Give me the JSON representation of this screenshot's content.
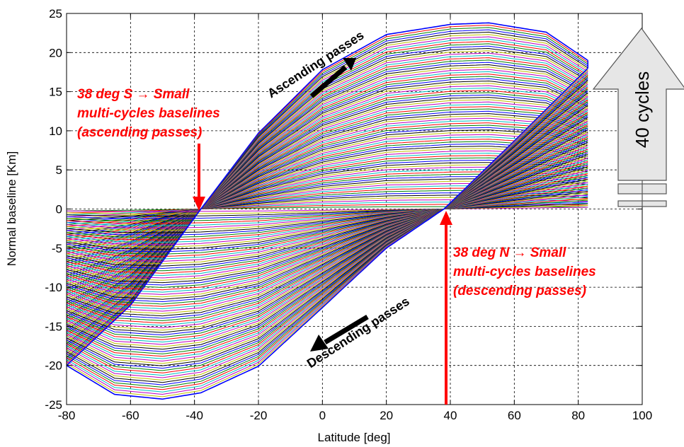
{
  "chart_data": {
    "type": "line",
    "title": "",
    "xlabel": "Latitude [deg]",
    "ylabel": "Normal baseline [Km]",
    "xlim": [
      -80,
      100
    ],
    "ylim": [
      -25,
      25
    ],
    "x_ticks": [
      -80,
      -60,
      -40,
      -20,
      0,
      20,
      40,
      60,
      80,
      100
    ],
    "y_ticks": [
      -25,
      -20,
      -15,
      -10,
      -5,
      0,
      5,
      10,
      15,
      20,
      25
    ],
    "x_tick_labels": [
      "-80",
      "-60",
      "-40",
      "-20",
      "0",
      "20",
      "40",
      "60",
      "80",
      "100"
    ],
    "y_tick_labels": [
      "-25",
      "-20",
      "-15",
      "-10",
      "-5",
      "0",
      "5",
      "10",
      "15",
      "20",
      "25"
    ],
    "grid": true,
    "grid_style": "dashed",
    "latitude_range": [
      -80,
      83
    ],
    "ascending_node_crossing_lat": -38,
    "descending_node_crossing_lat": 38,
    "ascending_envelope": {
      "x": [
        -80,
        -60,
        -38,
        -20,
        0,
        20,
        40,
        52,
        70,
        83
      ],
      "y": [
        -20,
        -12.3,
        0,
        9.7,
        17.8,
        22.3,
        23.6,
        23.8,
        22.6,
        19.0
      ]
    },
    "descending_envelope": {
      "x": [
        -80,
        -65,
        -50,
        -38,
        -20,
        0,
        20,
        38,
        60,
        83
      ],
      "y": [
        -20,
        -23.7,
        -24.3,
        -23.5,
        -20.1,
        -12.6,
        -5.0,
        0,
        8.7,
        18.0
      ]
    },
    "num_cycles": 40,
    "series_colors": [
      "#0000ff",
      "#008000",
      "#ff0000",
      "#00bfbf",
      "#bf00bf",
      "#bfbf00",
      "#000000"
    ],
    "envelope_color": "#0000ff",
    "annotation_color": "#ff0000"
  },
  "annotations": {
    "south": [
      "38 deg S → Small",
      "multi-cycles baselines",
      "(ascending passes)"
    ],
    "north": [
      "38 deg N  → Small",
      "multi-cycles baselines",
      "(descending passes)"
    ],
    "ascending": "Ascending passes",
    "descending": "Descending passes",
    "cycles": "40 cycles"
  }
}
